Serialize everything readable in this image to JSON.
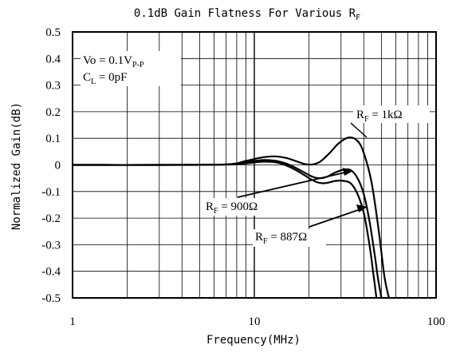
{
  "chart_data": {
    "type": "line",
    "title": "0.1dB Gain Flatness For Various R",
    "title_subscript": "F",
    "xlabel": "Frequency(MHz)",
    "ylabel": "Normalized Gain(dB)",
    "x_scale": "log",
    "xlim": [
      1,
      100
    ],
    "ylim": [
      -0.5,
      0.5
    ],
    "grid": true,
    "legend": "none",
    "x_tick_labels": [
      "1",
      "10",
      "100"
    ],
    "y_tick_labels": [
      "0.5",
      "0.4",
      "0.3",
      "0.2",
      "0.1",
      "0",
      "-0.1",
      "-0.2",
      "-0.3",
      "-0.4",
      "-0.5"
    ],
    "y_tick_values": [
      0.5,
      0.4,
      0.3,
      0.2,
      0.1,
      0,
      -0.1,
      -0.2,
      -0.3,
      -0.4,
      -0.5
    ],
    "conditions": {
      "vo_main": "Vo = 0.1V",
      "vo_sub": "P-P",
      "cl_main": "C",
      "cl_sub": "L",
      "cl_rest": " = 0pF"
    },
    "series": [
      {
        "label_main": "R",
        "label_sub": "F",
        "label_rest": " = 1kΩ",
        "x": [
          1,
          3,
          7,
          9,
          11,
          13,
          15,
          17,
          19,
          21,
          23,
          26,
          29,
          33,
          37,
          40,
          44,
          48,
          52,
          55
        ],
        "y": [
          0,
          0,
          0.002,
          0.015,
          0.028,
          0.032,
          0.026,
          0.014,
          0.003,
          0.002,
          0.012,
          0.045,
          0.08,
          0.103,
          0.09,
          0.045,
          -0.06,
          -0.23,
          -0.42,
          -0.5
        ]
      },
      {
        "label_main": "R",
        "label_sub": "F",
        "label_rest": " = 900Ω",
        "x": [
          1,
          3,
          7,
          9,
          11,
          13,
          15,
          17,
          19,
          21,
          23,
          25,
          28,
          31,
          34,
          37,
          40,
          43,
          46,
          48,
          50
        ],
        "y": [
          0,
          0,
          0.002,
          0.01,
          0.018,
          0.016,
          0.005,
          -0.012,
          -0.03,
          -0.045,
          -0.05,
          -0.045,
          -0.028,
          -0.018,
          -0.02,
          -0.05,
          -0.11,
          -0.21,
          -0.34,
          -0.43,
          -0.5
        ]
      },
      {
        "label_main": "R",
        "label_sub": "F",
        "label_rest": " = 887Ω",
        "x": [
          1,
          3,
          7,
          9,
          11,
          13,
          15,
          17,
          19,
          21,
          23,
          25,
          28,
          31,
          34,
          37,
          40,
          43,
          45,
          47
        ],
        "y": [
          0,
          0,
          0.001,
          0.006,
          0.012,
          0.01,
          -0.002,
          -0.02,
          -0.04,
          -0.058,
          -0.068,
          -0.068,
          -0.06,
          -0.06,
          -0.07,
          -0.11,
          -0.18,
          -0.3,
          -0.4,
          -0.5
        ]
      }
    ]
  }
}
